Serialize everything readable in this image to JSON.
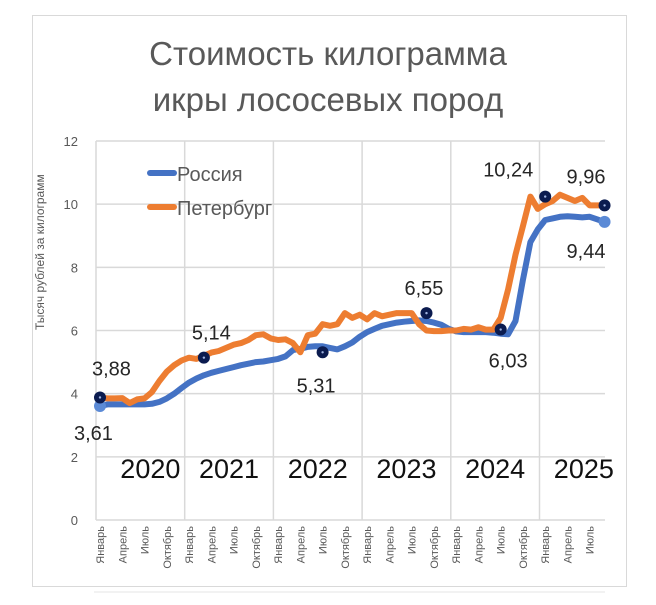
{
  "chart_data": {
    "type": "line",
    "title": "Стоимость килограмма икры лососевых пород",
    "title_lines": [
      "Стоимость килограмма",
      "икры лососевых пород"
    ],
    "xlabel": "",
    "ylabel": "Тысяч рублей за килограмм",
    "ylim": [
      0,
      12
    ],
    "yticks": [
      0,
      2,
      4,
      6,
      8,
      10,
      12
    ],
    "grid": true,
    "legend_position": "upper-left-inside",
    "x_start": "Январь 2020",
    "x_end": "Сентябрь 2025",
    "x_tick_labels": [
      "Январь",
      "Апрель",
      "Июль",
      "Октябрь",
      "Январь",
      "Апрель",
      "Июль",
      "Октябрь",
      "Январь",
      "Апрель",
      "Июль",
      "Октябрь",
      "Январь",
      "Апрель",
      "Июль",
      "Октябрь",
      "Январь",
      "Апрель",
      "Июль",
      "Октябрь",
      "Январь",
      "Апрель",
      "Июль"
    ],
    "year_labels": [
      "2020",
      "2021",
      "2022",
      "2023",
      "2024",
      "2025"
    ],
    "series": [
      {
        "name": "Россия",
        "color": "#4472C4",
        "values": [
          3.61,
          3.66,
          3.66,
          3.66,
          3.66,
          3.66,
          3.66,
          3.68,
          3.74,
          3.85,
          4.0,
          4.18,
          4.35,
          4.48,
          4.58,
          4.66,
          4.72,
          4.78,
          4.84,
          4.9,
          4.95,
          5.0,
          5.02,
          5.06,
          5.1,
          5.18,
          5.38,
          5.42,
          5.48,
          5.5,
          5.5,
          5.45,
          5.4,
          5.5,
          5.62,
          5.8,
          5.95,
          6.05,
          6.15,
          6.2,
          6.25,
          6.28,
          6.3,
          6.32,
          6.3,
          6.25,
          6.18,
          6.05,
          5.97,
          5.95,
          5.95,
          5.95,
          5.95,
          5.93,
          5.9,
          5.88,
          6.3,
          7.6,
          8.8,
          9.2,
          9.5,
          9.55,
          9.6,
          9.62,
          9.6,
          9.58,
          9.6,
          9.52,
          9.44
        ]
      },
      {
        "name": "Петербург",
        "color": "#ED7D31",
        "values": [
          3.88,
          3.85,
          3.85,
          3.86,
          3.7,
          3.82,
          3.85,
          4.05,
          4.4,
          4.7,
          4.9,
          5.05,
          5.14,
          5.1,
          5.2,
          5.3,
          5.35,
          5.45,
          5.55,
          5.6,
          5.7,
          5.85,
          5.88,
          5.75,
          5.7,
          5.72,
          5.6,
          5.31,
          5.85,
          5.9,
          6.2,
          6.15,
          6.2,
          6.55,
          6.4,
          6.5,
          6.35,
          6.55,
          6.45,
          6.5,
          6.55,
          6.55,
          6.55,
          6.2,
          6.0,
          5.98,
          5.98,
          6.0,
          6.0,
          6.05,
          6.03,
          6.1,
          6.03,
          6.03,
          6.4,
          7.3,
          8.4,
          9.3,
          10.24,
          9.85,
          10.0,
          10.1,
          10.3,
          10.2,
          10.1,
          10.2,
          9.96,
          9.96,
          9.96
        ]
      }
    ],
    "annotations": [
      {
        "label": "3,88",
        "series": "Петербург",
        "month_index": 0,
        "value": 3.88
      },
      {
        "label": "3,61",
        "series": "Россия",
        "month_index": 0,
        "value": 3.61
      },
      {
        "label": "5,14",
        "series": "Петербург",
        "month_index": 14,
        "value": 5.14
      },
      {
        "label": "5,31",
        "series": "Петербург",
        "month_index": 30,
        "value": 5.31
      },
      {
        "label": "6,55",
        "series": "Петербург",
        "month_index": 44,
        "value": 6.55
      },
      {
        "label": "6,03",
        "series": "Петербург",
        "month_index": 54,
        "value": 6.03
      },
      {
        "label": "10,24",
        "series": "Петербург",
        "month_index": 60,
        "value": 10.24
      },
      {
        "label": "9,96",
        "series": "Петербург",
        "month_index": 68,
        "value": 9.96
      },
      {
        "label": "9,44",
        "series": "Россия",
        "month_index": 68,
        "value": 9.44
      }
    ]
  },
  "colors": {
    "russia": "#4472C4",
    "petersburg": "#ED7D31",
    "marker": "#0B1B4F",
    "grid": "#d9d9d9",
    "axis_text": "#595959",
    "label_text": "#262626"
  }
}
